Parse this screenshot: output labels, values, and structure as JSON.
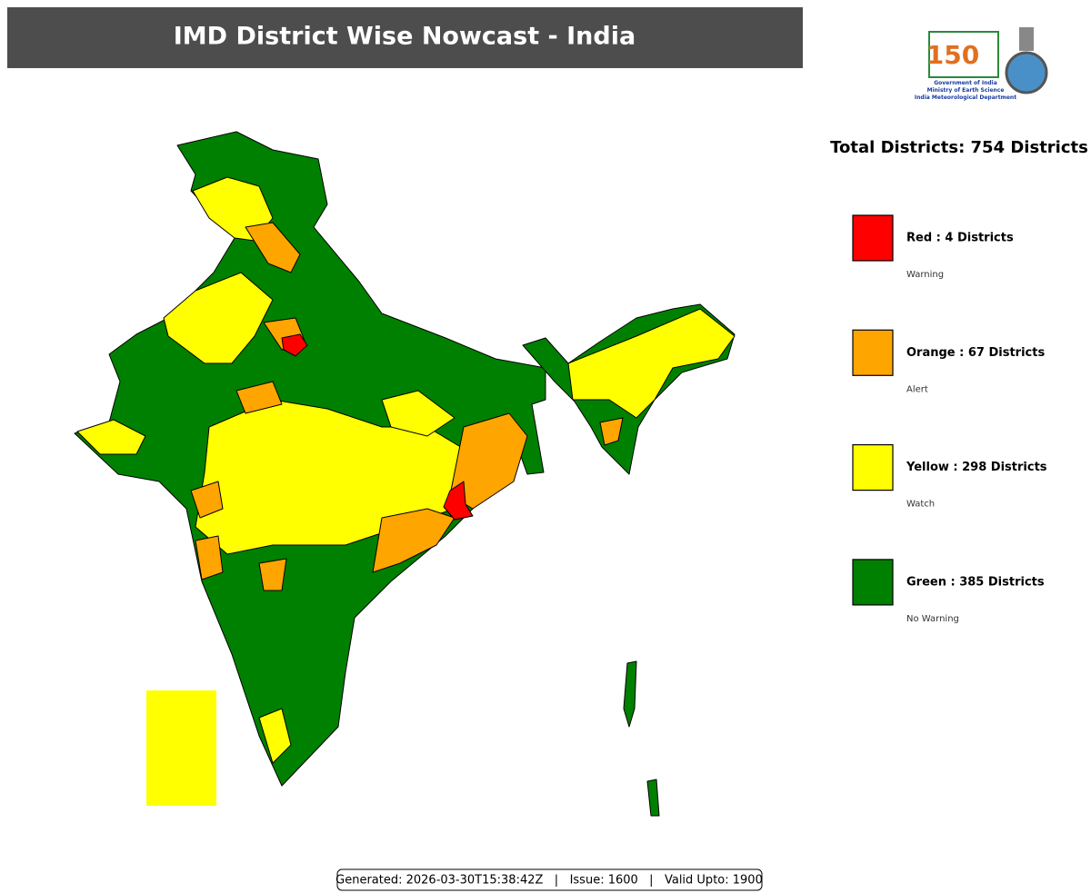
{
  "header": {
    "title": "IMD District Wise Nowcast - India"
  },
  "logo": {
    "number": "150",
    "lines": [
      "Government of India",
      "Ministry of Earth Science",
      "India Meteorological Department"
    ]
  },
  "legend": {
    "total": "Total Districts: 754 Districts",
    "items": [
      {
        "label": "Red : 4 Districts",
        "sublabel": "Warning",
        "color": "#ff0000"
      },
      {
        "label": "Orange : 67 Districts",
        "sublabel": "Alert",
        "color": "#ffa500"
      },
      {
        "label": "Yellow : 298 Districts",
        "sublabel": "Watch",
        "color": "#ffff00"
      },
      {
        "label": "Green : 385 Districts",
        "sublabel": "No Warning",
        "color": "#008000"
      }
    ]
  },
  "footer": {
    "text": "Generated: 2026-03-30T15:38:42Z   |   Issue: 1600   |   Valid Upto: 1900"
  }
}
